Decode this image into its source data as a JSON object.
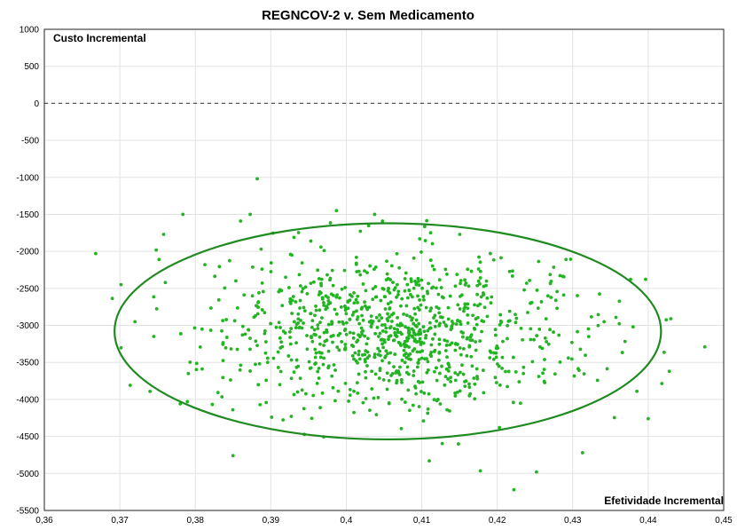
{
  "chart_data": {
    "type": "scatter",
    "title": "REGNCOV-2 v. Sem Medicamento",
    "xlabel": "Efetividade Incremental",
    "ylabel": "Custo Incremental",
    "xlim": [
      0.36,
      0.45
    ],
    "ylim": [
      -5500,
      1000
    ],
    "x_ticks": [
      "0,36",
      "0,37",
      "0,38",
      "0,39",
      "0,4",
      "0,41",
      "0,42",
      "0,43",
      "0,44",
      "0,45"
    ],
    "y_ticks": [
      "1000",
      "500",
      "0",
      "-500",
      "-1000",
      "-1500",
      "-2000",
      "-2500",
      "-3000",
      "-3500",
      "-4000",
      "-4500",
      "-5000",
      "-5500"
    ],
    "grid": true,
    "reference_line_y": 0,
    "point_color": "#22b422",
    "ellipse_color": "#1f8a1f",
    "confidence_ellipse": {
      "center": [
        0.4055,
        -3080
      ],
      "radius_x": 0.0362,
      "radius_y": 1460
    },
    "highlighted_points": [
      {
        "x": 0.3668,
        "y": -2030
      },
      {
        "x": 0.372,
        "y": -2950
      },
      {
        "x": 0.3745,
        "y": -3150
      },
      {
        "x": 0.3752,
        "y": -2110
      },
      {
        "x": 0.3758,
        "y": -1770
      },
      {
        "x": 0.378,
        "y": -4060
      },
      {
        "x": 0.385,
        "y": -4760
      },
      {
        "x": 0.386,
        "y": -1590
      },
      {
        "x": 0.3882,
        "y": -1020
      },
      {
        "x": 0.3987,
        "y": -1450
      },
      {
        "x": 0.4048,
        "y": -1590
      },
      {
        "x": 0.411,
        "y": -4830
      },
      {
        "x": 0.4222,
        "y": -5220
      },
      {
        "x": 0.4252,
        "y": -4980
      },
      {
        "x": 0.4313,
        "y": -4720
      },
      {
        "x": 0.44,
        "y": -4260
      },
      {
        "x": 0.443,
        "y": -2910
      },
      {
        "x": 0.4428,
        "y": -3620
      },
      {
        "x": 0.4475,
        "y": -3290
      },
      {
        "x": 0.438,
        "y": -3020
      },
      {
        "x": 0.4385,
        "y": -3890
      }
    ],
    "cloud_points": {
      "count": 1000,
      "x_mean": 0.4065,
      "x_sd": 0.012,
      "y_mean": -3080,
      "y_sd": 520
    }
  }
}
